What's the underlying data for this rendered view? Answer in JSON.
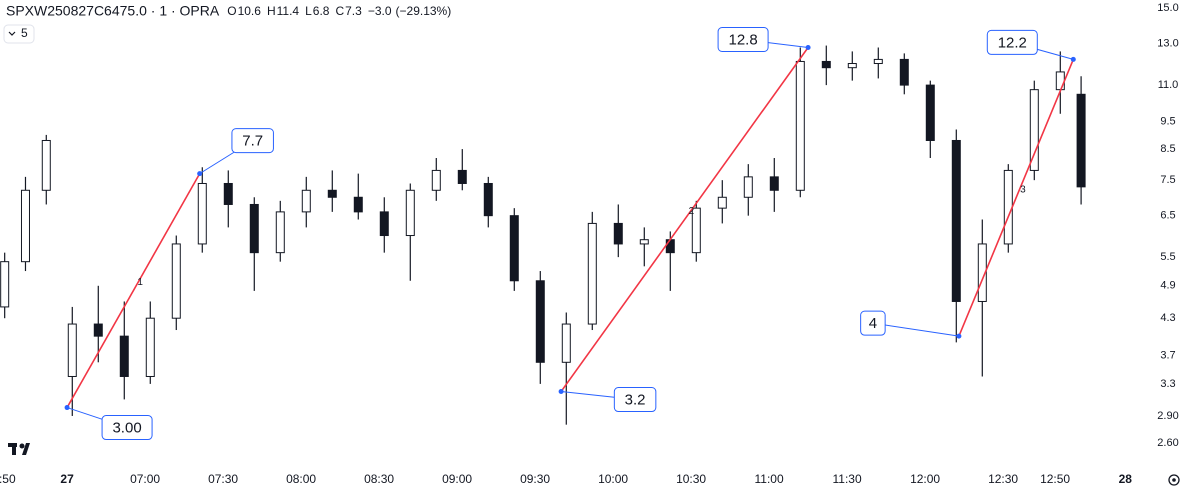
{
  "chart_data": {
    "type": "candlestick",
    "header": {
      "symbol": "SPXW250827C6475.0 · 1 · OPRA",
      "open": 10.6,
      "high": 11.4,
      "low": 6.8,
      "close": 7.3,
      "change": {
        "value": -3.0,
        "label": "−3.0"
      },
      "change_percent": {
        "value": -29.13,
        "label": "(−29.13%)"
      },
      "ohlc_letters": [
        "O",
        "H",
        "L",
        "C"
      ],
      "indicator_count": 5
    },
    "x": [
      -24,
      -16,
      -8,
      2,
      12,
      22,
      32,
      42,
      52,
      62,
      72,
      82,
      92,
      102,
      112,
      122,
      132,
      142,
      152,
      162,
      172,
      182,
      192,
      202,
      212,
      222,
      232,
      242,
      252,
      262,
      272,
      282,
      292,
      302,
      312,
      322,
      332,
      342,
      352,
      362,
      372,
      382,
      390
    ],
    "open": [
      4.5,
      5.4,
      7.2,
      3.4,
      4.2,
      4.0,
      3.4,
      4.3,
      5.8,
      7.4,
      6.8,
      5.6,
      6.6,
      7.2,
      7.0,
      6.6,
      6.0,
      7.2,
      7.8,
      7.4,
      6.5,
      5.0,
      3.6,
      4.2,
      6.3,
      5.8,
      5.9,
      5.6,
      6.7,
      7.0,
      7.6,
      7.2,
      12.1,
      11.8,
      12.0,
      12.2,
      11.0,
      8.8,
      4.6,
      5.8,
      7.8,
      10.8,
      10.6
    ],
    "high": [
      5.6,
      7.6,
      9.0,
      4.5,
      4.9,
      4.6,
      4.6,
      6.0,
      7.9,
      7.8,
      7.0,
      6.9,
      7.6,
      7.8,
      7.7,
      7.0,
      7.4,
      8.2,
      8.5,
      7.6,
      6.7,
      5.2,
      4.4,
      6.6,
      6.8,
      6.2,
      6.1,
      6.9,
      7.5,
      8.0,
      8.2,
      12.8,
      12.9,
      12.6,
      12.8,
      12.5,
      11.2,
      9.2,
      6.4,
      8.0,
      11.2,
      12.6,
      11.4
    ],
    "low": [
      4.3,
      5.2,
      6.8,
      2.9,
      3.6,
      3.1,
      3.3,
      4.1,
      5.6,
      6.2,
      4.8,
      5.4,
      6.2,
      6.6,
      6.4,
      5.6,
      5.0,
      6.9,
      7.2,
      6.2,
      4.8,
      3.3,
      2.8,
      4.1,
      5.5,
      5.3,
      4.8,
      5.4,
      6.3,
      6.5,
      6.6,
      7.0,
      11.0,
      11.2,
      11.3,
      10.6,
      8.2,
      3.9,
      3.4,
      5.6,
      7.5,
      9.8,
      6.8
    ],
    "close": [
      5.4,
      7.2,
      8.8,
      4.2,
      4.0,
      3.4,
      4.3,
      5.8,
      7.4,
      6.8,
      5.6,
      6.6,
      7.2,
      7.0,
      6.6,
      6.0,
      7.2,
      7.8,
      7.4,
      6.5,
      5.0,
      3.6,
      4.2,
      6.3,
      5.8,
      5.9,
      5.6,
      6.7,
      7.0,
      7.6,
      7.2,
      12.1,
      11.8,
      12.0,
      12.2,
      11.0,
      8.8,
      4.6,
      5.8,
      7.8,
      10.8,
      11.6,
      7.3
    ],
    "up_color": "#ffffff",
    "down_color": "#131722",
    "wick_color": "#131722",
    "annotations": [
      {
        "x": 0,
        "value": 3.0,
        "label": "3.00"
      },
      {
        "x": 51,
        "value": 7.7
      },
      {
        "x": 190,
        "value": 3.2
      },
      {
        "x": 285,
        "value": 12.8
      },
      {
        "x": 343,
        "value": 4.0
      },
      {
        "x": 387,
        "value": 12.2
      }
    ],
    "trend_lines": [
      1,
      2,
      3
    ],
    "trend_color": "#f23645",
    "annotation_color": "#2962ff",
    "log_scale": true,
    "xlim": [
      -25.8,
      416.5
    ],
    "xticks": [
      {
        "value": -23,
        "label": ":50"
      },
      {
        "value": 0,
        "label": "27"
      },
      {
        "value": 30,
        "label": "07:00"
      },
      {
        "value": 60,
        "label": "07:30"
      },
      {
        "value": 90,
        "label": "08:00"
      },
      {
        "value": 120,
        "label": "08:30"
      },
      {
        "value": 150,
        "label": "09:00"
      },
      {
        "value": 180,
        "label": "09:30"
      },
      {
        "value": 210,
        "label": "10:00"
      },
      {
        "value": 240,
        "label": "10:30"
      },
      {
        "value": 270,
        "label": "11:00"
      },
      {
        "value": 300,
        "label": "11:30"
      },
      {
        "value": 330,
        "label": "12:00"
      },
      {
        "value": 360,
        "label": "12:30"
      },
      {
        "value": 380,
        "label": "12:50"
      },
      {
        "value": 407,
        "label": "28"
      }
    ],
    "ylim": [
      2.38,
      15.5
    ],
    "yticks": [
      {
        "value": 2.6,
        "label": "2.60"
      },
      {
        "value": 2.9,
        "label": "2.90"
      },
      3.3,
      3.7,
      4.3,
      4.9,
      5.5,
      6.5,
      7.5,
      8.5,
      9.5,
      {
        "value": 11,
        "label": "11.0"
      },
      {
        "value": 13,
        "label": "13.0"
      },
      {
        "value": 15,
        "label": "15.0"
      }
    ]
  }
}
